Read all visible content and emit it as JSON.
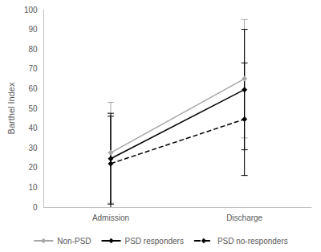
{
  "chart_data": {
    "type": "line",
    "categories": [
      "Admission",
      "Discharge"
    ],
    "y_label": "Barthel Index",
    "ylim": [
      0,
      100
    ],
    "yticks": [
      0,
      10,
      20,
      30,
      40,
      50,
      60,
      70,
      80,
      90,
      100
    ],
    "grid": false,
    "legend": "bottom",
    "series": [
      {
        "name": "Non-PSD",
        "color": "#a6a6a6",
        "marker": "diamond",
        "line_style": "solid",
        "values": [
          27.5,
          65
        ],
        "error": [
          25.5,
          30
        ]
      },
      {
        "name": "PSD responders",
        "color": "#000000",
        "marker": "diamond",
        "line_style": "solid",
        "values": [
          24.5,
          59.5
        ],
        "error": [
          23,
          30.5
        ]
      },
      {
        "name": "PSD no-responders",
        "color": "#000000",
        "marker": "diamond",
        "line_style": "dashed",
        "values": [
          22,
          44.5
        ],
        "error": [
          24,
          28.5
        ]
      }
    ]
  }
}
